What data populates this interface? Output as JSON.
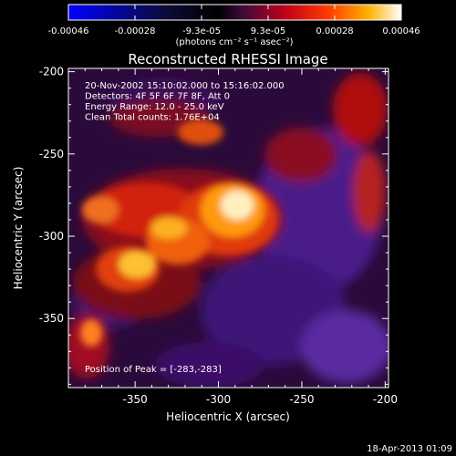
{
  "colorbar": {
    "tick_labels": [
      "-0.00046",
      "-0.00028",
      "-9.3e-05",
      "9.3e-05",
      "0.00028",
      "0.00046"
    ],
    "unit_label": "(photons cm⁻² s⁻¹ asec⁻²)",
    "colors": [
      "#0000ff",
      "#0b0b35",
      "#000000",
      "#3a0a3a",
      "#c0001a",
      "#ff3b00",
      "#ffb000",
      "#ffffff"
    ]
  },
  "image": {
    "title": "Reconstructed RHESSI Image",
    "info_lines": [
      "20-Nov-2002 15:10:02.000 to 15:16:02.000",
      "Detectors: 4F 5F 6F 7F 8F, Att 0",
      "Energy Range: 12.0 - 25.0 keV",
      "Clean     Total counts: 1.76E+04"
    ],
    "peak_text": "Position of Peak = [-283,-283]",
    "xlabel": "Heliocentric X (arcsec)",
    "ylabel": "Heliocentric Y (arcsec)",
    "x_ticks": [
      "-350",
      "-300",
      "-250",
      "-200"
    ],
    "y_ticks": [
      "-200",
      "-250",
      "-300",
      "-350"
    ],
    "xlim": [
      -390,
      -198
    ],
    "ylim": [
      -392,
      -198
    ]
  },
  "footer": {
    "timestamp": "18-Apr-2013 01:09"
  }
}
